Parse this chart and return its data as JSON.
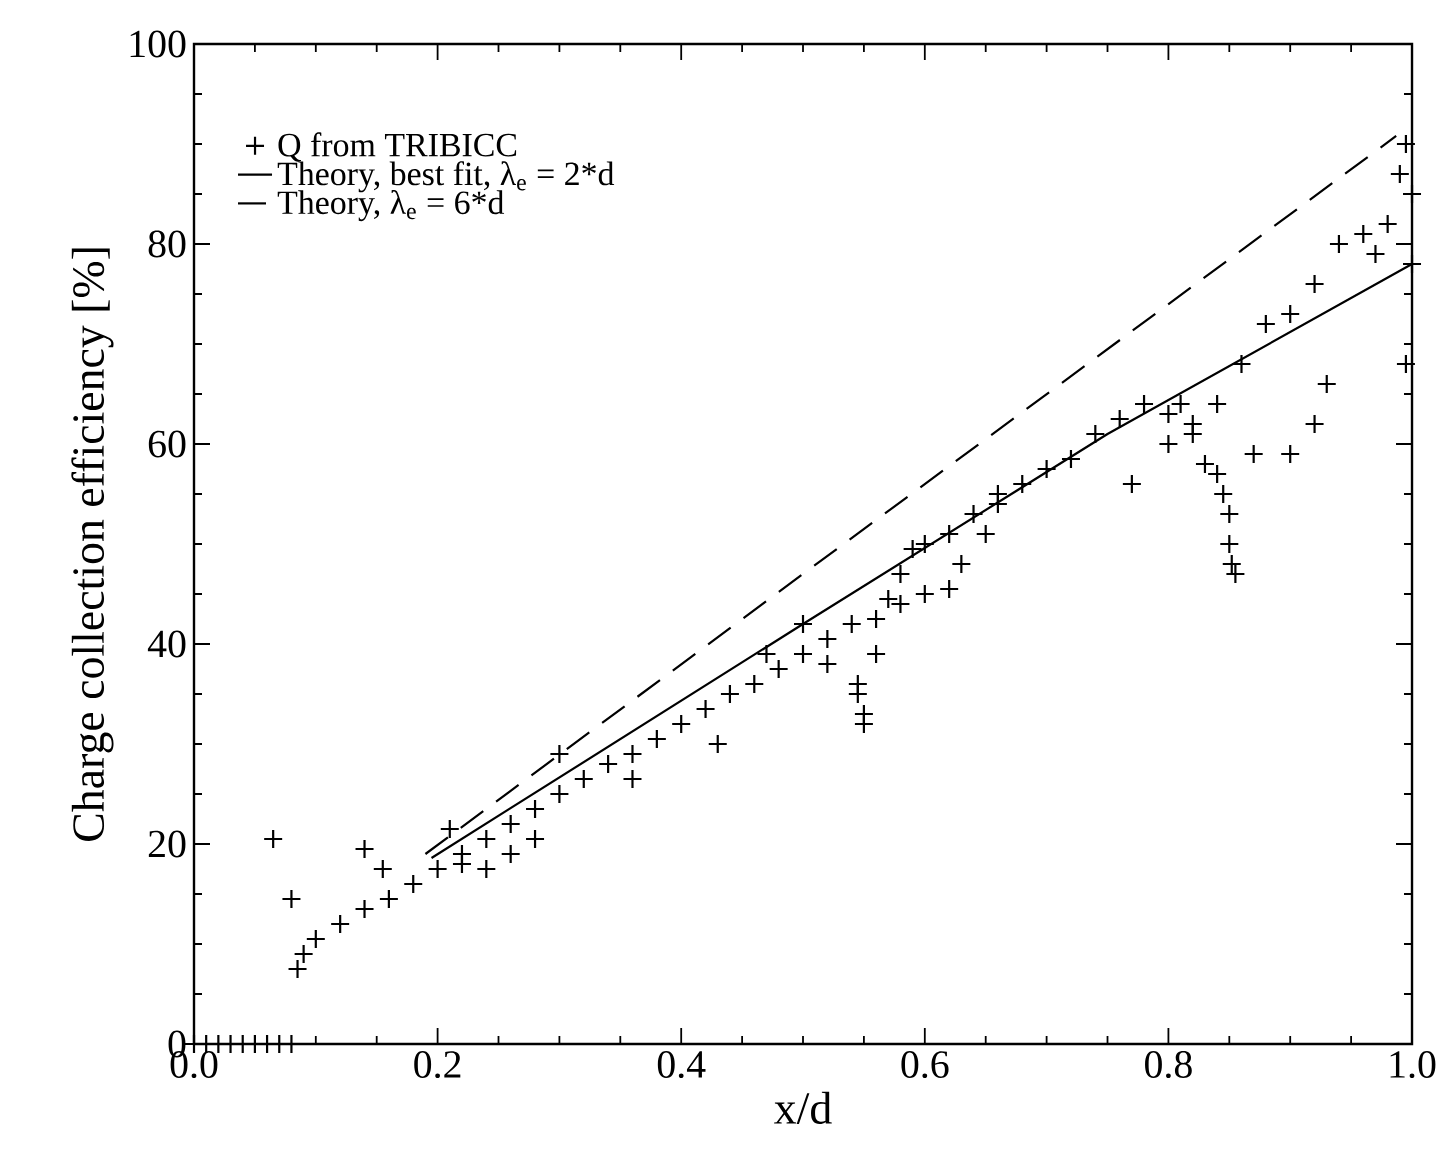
{
  "chart_data": {
    "type": "scatter",
    "xlabel": "x/d",
    "ylabel": "Charge collection efficiency [%]",
    "xlim": [
      0,
      1
    ],
    "ylim": [
      0,
      100
    ],
    "xticks": [
      {
        "value": 0,
        "label": "0.0"
      },
      {
        "value": 0.2,
        "label": "0.2"
      },
      {
        "value": 0.4,
        "label": "0.4"
      },
      {
        "value": 0.6,
        "label": "0.6"
      },
      {
        "value": 0.8,
        "label": "0.8"
      },
      {
        "value": 1,
        "label": "1.0"
      }
    ],
    "yticks": [
      0,
      20,
      40,
      60,
      80,
      100
    ],
    "legend": "top left",
    "series": [
      {
        "name": "Q from TRIBICC",
        "type": "scatter",
        "marker": "cross",
        "color": "#000000",
        "x": [
          0.0,
          0.01,
          0.02,
          0.03,
          0.04,
          0.05,
          0.06,
          0.07,
          0.08,
          0.065,
          0.08,
          0.085,
          0.14,
          0.155,
          0.09,
          0.1,
          0.12,
          0.14,
          0.16,
          0.18,
          0.2,
          0.22,
          0.24,
          0.26,
          0.28,
          0.3,
          0.32,
          0.34,
          0.36,
          0.38,
          0.4,
          0.42,
          0.44,
          0.46,
          0.48,
          0.5,
          0.52,
          0.54,
          0.56,
          0.57,
          0.58,
          0.59,
          0.6,
          0.62,
          0.64,
          0.66,
          0.68,
          0.7,
          0.72,
          0.74,
          0.76,
          0.78,
          0.8,
          0.82,
          0.84,
          0.86,
          0.88,
          0.9,
          0.92,
          0.94,
          0.96,
          0.97,
          0.98,
          0.99,
          0.995,
          0.21,
          0.22,
          0.24,
          0.26,
          0.28,
          0.36,
          0.3,
          0.43,
          0.47,
          0.5,
          0.52,
          0.545,
          0.55,
          0.55,
          0.545,
          0.56,
          0.58,
          0.6,
          0.62,
          0.63,
          0.65,
          0.66,
          0.77,
          0.8,
          0.81,
          0.82,
          0.83,
          0.84,
          0.845,
          0.85,
          0.85,
          0.852,
          0.855,
          0.87,
          0.9,
          0.92,
          0.93,
          0.995,
          1.0,
          1.0
        ],
        "values": [
          0,
          0,
          0,
          0,
          0,
          0,
          0,
          0,
          0,
          20.5,
          14.5,
          7.5,
          19.5,
          17.5,
          9,
          10.5,
          12,
          13.5,
          14.5,
          16,
          17.5,
          19,
          20.5,
          22,
          23.5,
          25,
          26.5,
          28,
          29,
          30.5,
          32,
          33.5,
          35,
          36,
          37.5,
          39,
          40.5,
          42,
          42.5,
          44.5,
          47,
          49.5,
          50,
          51,
          53,
          54,
          56,
          57.5,
          58.5,
          61,
          62.5,
          64,
          63,
          62,
          64,
          68,
          72,
          73,
          76,
          80,
          81,
          79,
          82,
          87,
          90,
          21.5,
          18,
          17.5,
          19,
          20.5,
          26.5,
          29,
          30,
          39,
          42,
          38,
          35,
          33,
          32,
          36,
          39,
          44,
          45,
          45.5,
          48,
          51,
          55,
          56,
          60,
          64,
          61,
          58,
          57,
          55,
          53,
          50,
          48,
          47,
          59,
          59,
          62,
          66,
          68,
          78,
          85
        ]
      },
      {
        "name": "Theory, best fit, λ$_{e}$ = 2*d",
        "type": "line",
        "line_style": "solid",
        "marker": "none",
        "color": "#000000",
        "x": [
          0.195,
          0.5,
          0.75,
          1.0
        ],
        "values": [
          18.6,
          42,
          61,
          78
        ]
      },
      {
        "name": "Theory, λ$_{e}$ = 6*d",
        "type": "line",
        "line_style": "dashed",
        "marker": "none",
        "color": "#000000",
        "x": [
          0.19,
          0.5,
          0.987
        ],
        "values": [
          19,
          47,
          90.8
        ]
      }
    ]
  }
}
